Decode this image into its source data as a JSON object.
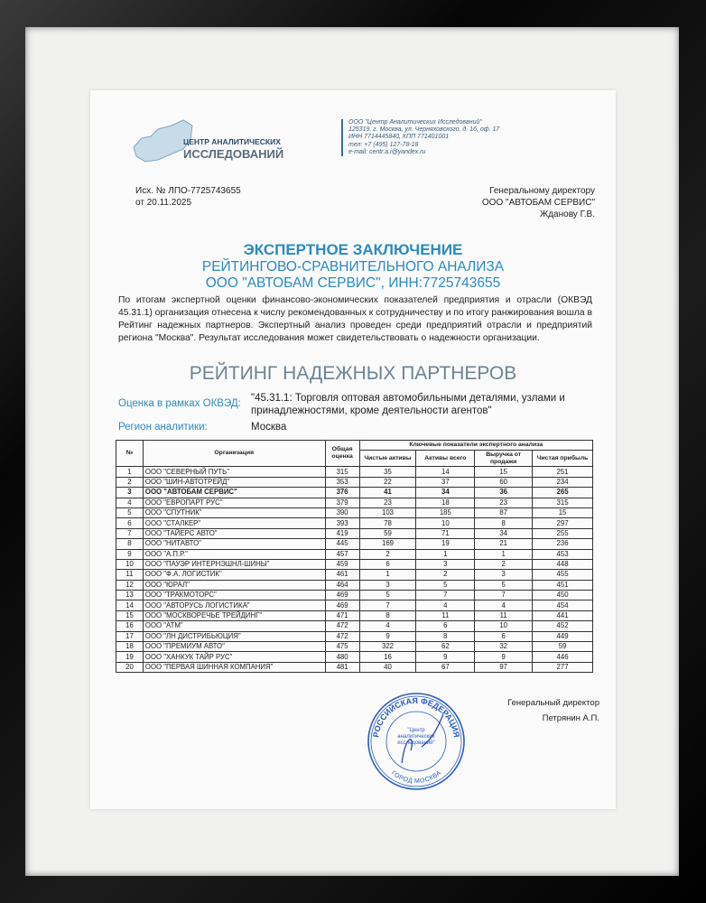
{
  "header": {
    "logo_text": [
      "ЦЕНТР АНАЛИТИЧЕСКИХ",
      "ИССЛЕДОВАНИЙ"
    ],
    "contact": [
      "ООО \"Центр Аналитических Исследований\"",
      "125319, г. Москва, ул. Черняховского, д. 16, оф. 17",
      "ИНН 7714445840, КПП 771401001",
      "тел: +7 (495) 127-78-18",
      "e-mail: centr.a.i@yandex.ru"
    ],
    "ref_number": "Исх. № ЛПО-7725743655",
    "ref_date": "от 20.11.2025",
    "addressee": [
      "Генеральному директору",
      "ООО \"АВТОБАМ СЕРВИС\"",
      "Жданову Г.В."
    ]
  },
  "title": {
    "line1": "ЭКСПЕРТНОЕ ЗАКЛЮЧЕНИЕ",
    "line2": "РЕЙТИНГОВО-СРАВНИТЕЛЬНОГО АНАЛИЗА",
    "line3": "ООО \"АВТОБАМ СЕРВИС\", ИНН:7725743655"
  },
  "paragraph": "По итогам экспертной оценки финансово-экономических показателей предприятия и отрасли (ОКВЭД 45.31.1) организация отнесена к числу рекомендованных к сотрудничеству и по итогу ранжирования вошла в Рейтинг надежных партнеров. Экспертный анализ проведен среди  предприятий отрасли и предприятий региона \"Москва\". Результат исследования может свидетельствовать о надежности организации.",
  "rating_title": "РЕЙТИНГ НАДЕЖНЫХ ПАРТНЕРОВ",
  "okved": {
    "label": "Оценка в рамках ОКВЭД:",
    "value": "\"45.31.1: Торговля оптовая автомобильными деталями, узлами и принадлежностями, кроме деятельности агентов\""
  },
  "region": {
    "label": "Регион аналитики:",
    "value": "Москва"
  },
  "table": {
    "headers": {
      "num": "№",
      "org": "Организация",
      "total": "Общая оценка",
      "group": "Ключевые показатели экспертного анализа",
      "net_assets": "Чистые активы",
      "assets": "Активы всего",
      "revenue": "Выручка от продажи",
      "profit": "Чистая прибыль"
    },
    "highlight_row": 3,
    "rows": [
      [
        "1",
        "ООО \"СЕВЕРНЫЙ ПУТЬ\"",
        "315",
        "35",
        "14",
        "15",
        "251"
      ],
      [
        "2",
        "ООО \"ШИН-АВТОТРЕЙД\"",
        "353",
        "22",
        "37",
        "60",
        "234"
      ],
      [
        "3",
        "ООО \"АВТОБАМ СЕРВИС\"",
        "376",
        "41",
        "34",
        "36",
        "265"
      ],
      [
        "4",
        "ООО \"ЕВРОПАРТ РУС\"",
        "379",
        "23",
        "18",
        "23",
        "315"
      ],
      [
        "5",
        "ООО \"СПУТНИК\"",
        "390",
        "103",
        "185",
        "87",
        "15"
      ],
      [
        "6",
        "ООО \"СТАЛКЕР\"",
        "393",
        "78",
        "10",
        "8",
        "297"
      ],
      [
        "7",
        "ООО \"ТАЙЕРС АВТО\"",
        "419",
        "59",
        "71",
        "34",
        "255"
      ],
      [
        "8",
        "ООО \"НИТАВТО\"",
        "445",
        "169",
        "19",
        "21",
        "236"
      ],
      [
        "9",
        "ООО \"А.П.Р.\"",
        "457",
        "2",
        "1",
        "1",
        "453"
      ],
      [
        "10",
        "ООО \"ПАУЭР ИНТЕРНЭШНЛ-ШИНЫ\"",
        "459",
        "6",
        "3",
        "2",
        "448"
      ],
      [
        "11",
        "ООО \"Ф.А. ЛОГИСТИК\"",
        "461",
        "1",
        "2",
        "3",
        "455"
      ],
      [
        "12",
        "ООО \"ЮРАЛ\"",
        "464",
        "3",
        "5",
        "5",
        "451"
      ],
      [
        "13",
        "ООО \"ТРАКМОТОРС\"",
        "469",
        "5",
        "7",
        "7",
        "450"
      ],
      [
        "14",
        "ООО \"АВТОРУСЬ ЛОГИСТИКА\"",
        "469",
        "7",
        "4",
        "4",
        "454"
      ],
      [
        "15",
        "ООО \"МОСКВОРЕЧЬЕ ТРЕЙДИНГ\"",
        "471",
        "8",
        "11",
        "11",
        "441"
      ],
      [
        "16",
        "ООО \"АТМ\"",
        "472",
        "4",
        "6",
        "10",
        "452"
      ],
      [
        "17",
        "ООО \"ЛН ДИСТРИБЬЮЦИЯ\"",
        "472",
        "9",
        "8",
        "6",
        "449"
      ],
      [
        "18",
        "ООО \"ПРЕМИУМ АВТО\"",
        "475",
        "322",
        "62",
        "32",
        "59"
      ],
      [
        "19",
        "ООО \"ХАНКУК ТАЙР РУС\"",
        "480",
        "16",
        "9",
        "9",
        "446"
      ],
      [
        "20",
        "ООО \"ПЕРВАЯ ШИННАЯ КОМПАНИЯ\"",
        "481",
        "40",
        "67",
        "97",
        "277"
      ]
    ]
  },
  "signature": {
    "position": "Генеральный директор",
    "name": "Петрянин А.П."
  },
  "stamp": {
    "outer": "РОССИЙСКАЯ ФЕДЕРАЦИЯ",
    "bottom": "ГОРОД МОСКВА",
    "center": "\"Центр аналитических исследований\""
  },
  "colors": {
    "accent": "#2b8ac0",
    "stamp": "#2a5cc0",
    "frame": "#111111"
  }
}
